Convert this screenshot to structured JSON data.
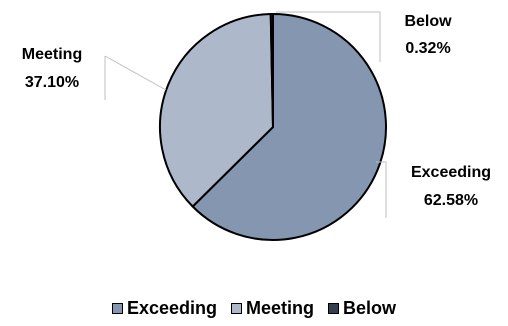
{
  "chart_data": {
    "type": "pie",
    "title": "",
    "start": "top",
    "direction": "clockwise",
    "slices": [
      {
        "label": "Exceeding",
        "value": 62.58,
        "value_label": "62.58%",
        "color": "#8496b0"
      },
      {
        "label": "Meeting",
        "value": 37.1,
        "value_label": "37.10%",
        "color": "#adb9ca"
      },
      {
        "label": "Below",
        "value": 0.32,
        "value_label": "0.32%",
        "color": "#333f50"
      }
    ],
    "legend": {
      "position": "bottom",
      "entries": [
        "Exceeding",
        "Meeting",
        "Below"
      ]
    }
  }
}
